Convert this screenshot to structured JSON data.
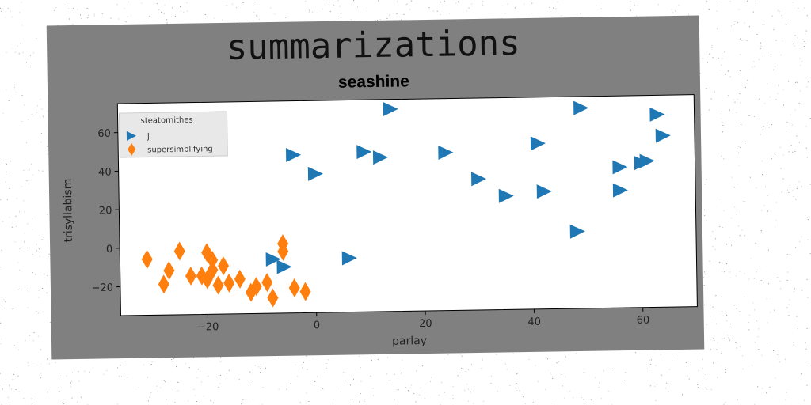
{
  "figure": {
    "suptitle": "summarizations",
    "title": "seashine"
  },
  "chart_data": {
    "type": "scatter",
    "title": "seashine",
    "suptitle": "summarizations",
    "xlabel": "parlay",
    "ylabel": "trisyllabism",
    "xlim": [
      -36,
      70
    ],
    "ylim": [
      -35,
      75
    ],
    "xticks": [
      -20,
      0,
      20,
      40,
      60
    ],
    "yticks": [
      -20,
      0,
      20,
      40,
      60
    ],
    "grid": false,
    "legend": {
      "title": "steatornithes",
      "placement": "top-left"
    },
    "series": [
      {
        "name": "j",
        "marker": "triangle-right",
        "color": "#1f77b4",
        "points": [
          [
            14,
            70
          ],
          [
            49,
            69
          ],
          [
            63,
            65
          ],
          [
            64,
            54
          ],
          [
            41,
            51
          ],
          [
            -4,
            47
          ],
          [
            9,
            48
          ],
          [
            12,
            45
          ],
          [
            24,
            47
          ],
          [
            56,
            38
          ],
          [
            60,
            40
          ],
          [
            61,
            41
          ],
          [
            0,
            37
          ],
          [
            30,
            33
          ],
          [
            35,
            24
          ],
          [
            42,
            26
          ],
          [
            56,
            26
          ],
          [
            48,
            5
          ],
          [
            6,
            -7
          ],
          [
            -8,
            -7
          ],
          [
            -6,
            -11
          ]
        ]
      },
      {
        "name": "supersimplifying",
        "marker": "thin-diamond",
        "color": "#ff7f0e",
        "points": [
          [
            -31,
            -6
          ],
          [
            -25,
            -2
          ],
          [
            -27,
            -12
          ],
          [
            -28,
            -19
          ],
          [
            -23,
            -15
          ],
          [
            -21,
            -15
          ],
          [
            -20,
            -3
          ],
          [
            -19,
            -7
          ],
          [
            -19,
            -12
          ],
          [
            -20,
            -17
          ],
          [
            -18,
            -20
          ],
          [
            -17,
            -10
          ],
          [
            -16,
            -19
          ],
          [
            -14,
            -17
          ],
          [
            -12,
            -24
          ],
          [
            -11,
            -21
          ],
          [
            -9,
            -19
          ],
          [
            -8,
            -27
          ],
          [
            -6,
            1
          ],
          [
            -6,
            -3
          ],
          [
            -4,
            -22
          ],
          [
            -2,
            -24
          ]
        ]
      }
    ]
  }
}
